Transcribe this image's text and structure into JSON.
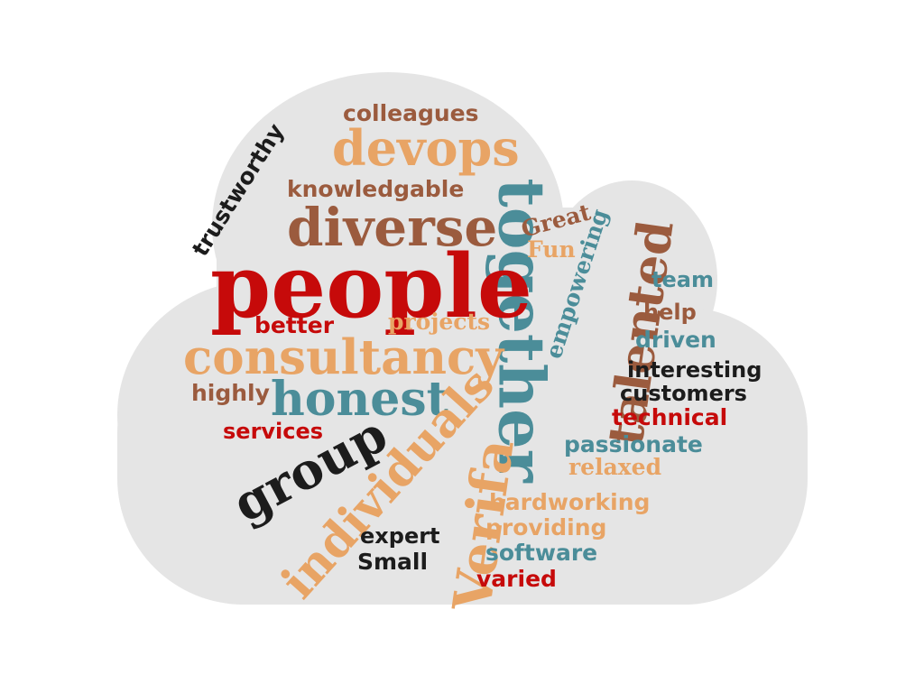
{
  "colors": {
    "cloud": "#e5e5e5",
    "red": "#c60a0a",
    "teal": "#4b8d99",
    "brown": "#9b5b3e",
    "tan": "#e8a465",
    "black": "#1c1c1c"
  },
  "words": {
    "colleagues": "colleagues",
    "trustworthy": "trustworthy",
    "devops": "devops",
    "knowledgable": "knowledgable",
    "together": "together",
    "diverse": "diverse",
    "great": "Great",
    "empowering": "empowering",
    "talented": "talented",
    "people": "people",
    "fun": "Fun",
    "team": "team",
    "better": "better",
    "projects": "projects",
    "help": "help",
    "consultancy": "consultancy",
    "driven": "driven",
    "interesting": "interesting",
    "highly": "highly",
    "honest": "honest",
    "customers": "customers",
    "technical": "technical",
    "services": "services",
    "passionate": "passionate",
    "group": "group",
    "individuals": "individuals",
    "relaxed": "relaxed",
    "verifa": "Verifa",
    "hardworking": "hardworking",
    "providing": "providing",
    "expert": "expert",
    "software": "software",
    "small": "Small",
    "varied": "varied"
  }
}
